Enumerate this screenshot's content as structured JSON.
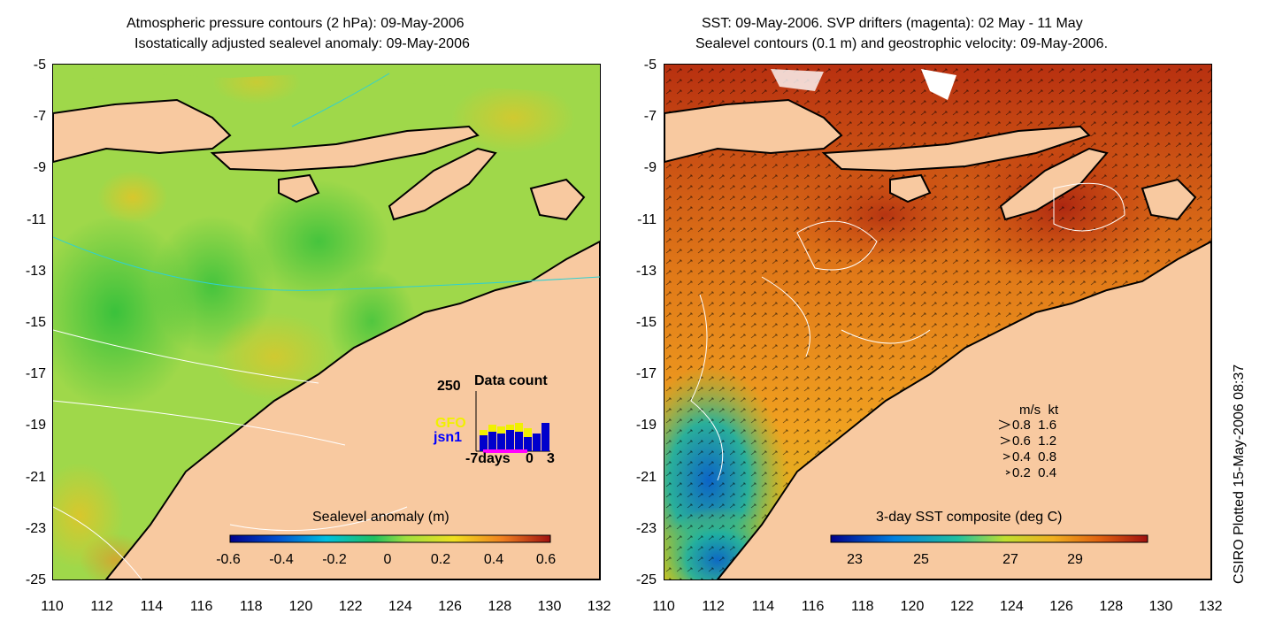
{
  "left_panel": {
    "title_line1": "Atmospheric pressure contours (2 hPa): 09-May-2006",
    "title_line2": "Isostatically adjusted sealevel anomaly: 09-May-2006",
    "colorbar_label": "Sealevel anomaly (m)",
    "colorbar_ticks": [
      "-0.6",
      "-0.4",
      "-0.2",
      "0",
      "0.2",
      "0.4",
      "0.6"
    ],
    "inset": {
      "title": "Data count",
      "ymax_label": "250",
      "sat1": "GFO",
      "sat2": "jsn1",
      "xlabel_left": "-7days",
      "xlabel_mid": "0",
      "xlabel_right": "3"
    }
  },
  "right_panel": {
    "title_line1": "SST: 09-May-2006. SVP drifters (magenta): 02 May - 11 May",
    "title_line2": "Sealevel contours (0.1 m) and geostrophic velocity: 09-May-2006.",
    "colorbar_label": "3-day SST composite (deg C)",
    "colorbar_ticks": [
      "23",
      "25",
      "27",
      "29"
    ],
    "legend": {
      "header": "m/s  kt",
      "rows": [
        "0.8  1.6",
        "0.6  1.2",
        "0.4  0.8",
        "0.2  0.4"
      ]
    }
  },
  "y_ticks": [
    "-5",
    "-7",
    "-9",
    "-11",
    "-13",
    "-15",
    "-17",
    "-19",
    "-21",
    "-23",
    "-25"
  ],
  "x_ticks": [
    "110",
    "112",
    "114",
    "116",
    "118",
    "120",
    "122",
    "124",
    "126",
    "128",
    "130",
    "132"
  ],
  "credit": "CSIRO Plotted 15-May-2006 08:37",
  "colors": {
    "land": "#f8c9a0",
    "sla_base": "#9fd84a",
    "sst_base": "#e07818"
  }
}
